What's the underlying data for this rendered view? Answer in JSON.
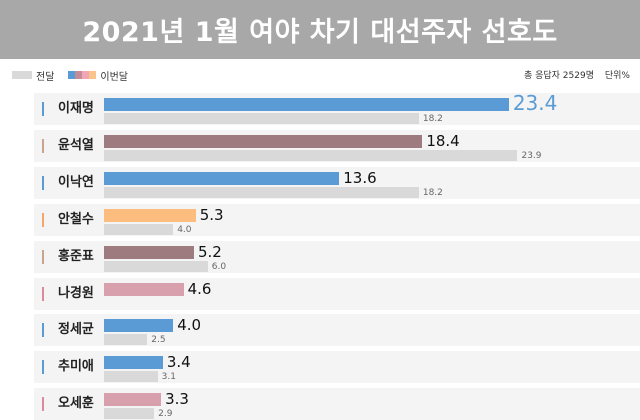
{
  "title": "2021년 1월 여야 차기 대선주자 선호도",
  "legend": {
    "previous_label": "전달",
    "current_label": "이번달",
    "current_swatch_colors": [
      "#5b9bd5",
      "#c48c97",
      "#f0a6b4",
      "#f9c48a"
    ]
  },
  "meta": {
    "respondents": "총 응답자 2529명",
    "unit": "단위%"
  },
  "colors": {
    "previous": "#d9d9d9",
    "blue": "#5b9bd5",
    "mauve": "#9e7b7e",
    "orange": "#fdbd7e",
    "pink": "#d8a0ad",
    "highlight_text": "#5b9bd5"
  },
  "chart_data": {
    "type": "bar",
    "orientation": "horizontal",
    "title": "2021년 1월 여야 차기 대선주자 선호도",
    "categories": [
      "이재명",
      "윤석열",
      "이낙연",
      "안철수",
      "홍준표",
      "나경원",
      "정세균",
      "추미애",
      "오세훈"
    ],
    "series": [
      {
        "name": "이번달",
        "values": [
          23.4,
          18.4,
          13.6,
          5.3,
          5.2,
          4.6,
          4.0,
          3.4,
          3.3
        ],
        "labels": [
          "23.4",
          "18.4",
          "13.6",
          "5.3",
          "5.2",
          "4.6",
          "4.0",
          "3.4",
          "3.3"
        ],
        "colors": [
          "#5b9bd5",
          "#9e7b7e",
          "#5b9bd5",
          "#fdbd7e",
          "#9e7b7e",
          "#d8a0ad",
          "#5b9bd5",
          "#5b9bd5",
          "#d8a0ad"
        ]
      },
      {
        "name": "전달",
        "values": [
          18.2,
          23.9,
          18.2,
          4.0,
          6.0,
          null,
          2.5,
          3.1,
          2.9
        ],
        "labels": [
          "18.2",
          "23.9",
          "18.2",
          "4.0",
          "6.0",
          "",
          "2.5",
          "3.1",
          "2.9"
        ],
        "color": "#d9d9d9"
      }
    ],
    "accent_colors": [
      "#5b9bd5",
      "#c9a48f",
      "#5b9bd5",
      "#f4a66a",
      "#c9a48f",
      "#d98a9b",
      "#5b9bd5",
      "#5b9bd5",
      "#d98a9b"
    ],
    "xlim": [
      0,
      25
    ],
    "grid": false,
    "legend_position": "top-left"
  }
}
